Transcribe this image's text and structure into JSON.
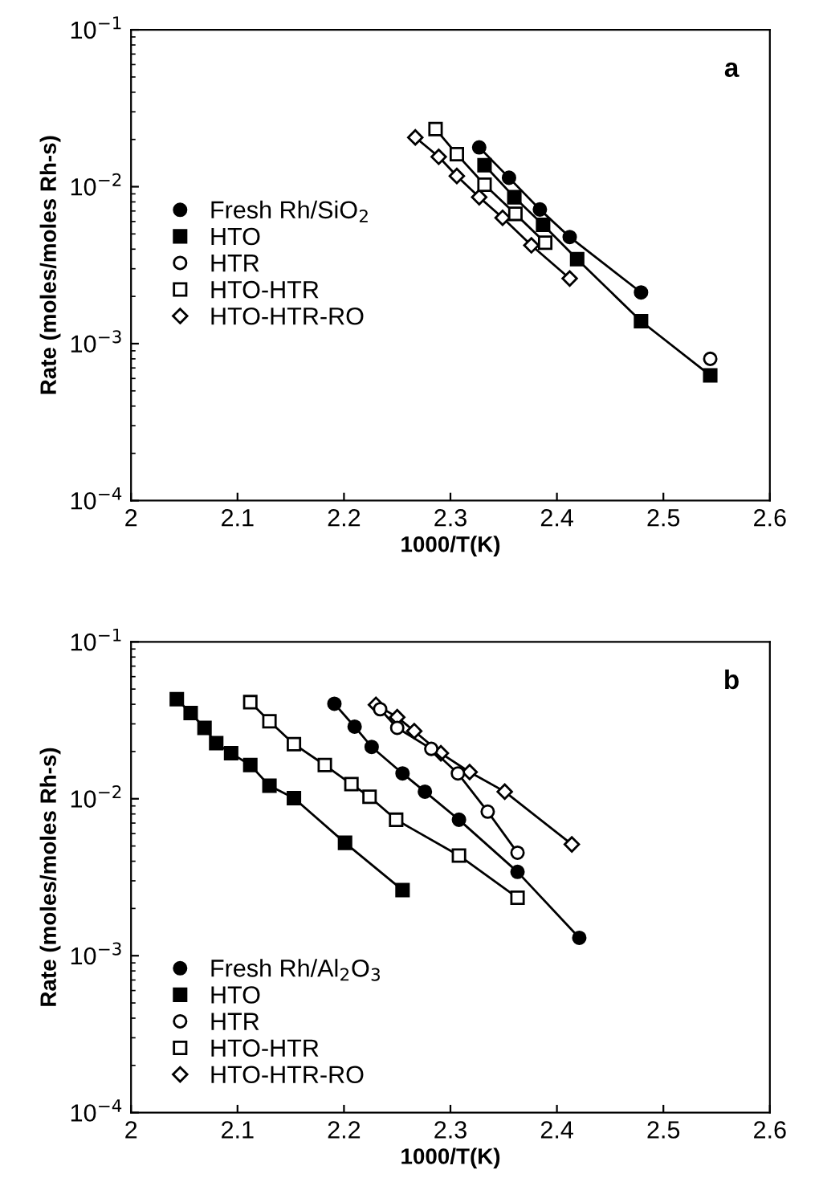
{
  "chart_data": [
    {
      "type": "line",
      "xlabel": "1000/T(K)",
      "ylabel": "Rate (moles/moles Rh-s)",
      "annotations": [
        "a"
      ],
      "log": "y",
      "legend": "left",
      "grid": false,
      "xlim": [
        2,
        2.6
      ],
      "xticks": [
        2,
        2.1,
        2.2,
        2.3,
        2.4,
        2.5,
        2.6
      ],
      "ylim": [
        0.0001,
        0.1
      ],
      "yticks": [
        {
          "value": 0.0001,
          "label": "10$^{−4}$"
        },
        {
          "value": 0.001,
          "label": "10$^{−3}$"
        },
        {
          "value": 0.01,
          "label": "10$^{−2}$"
        },
        {
          "value": 0.1,
          "label": "10$^{−1}$"
        }
      ],
      "series": [
        {
          "name": "Fresh Rh/SiO$_{2}$",
          "color": "#000000",
          "marker": "circle",
          "x": [
            2.327,
            2.355,
            2.384,
            2.412,
            2.479
          ],
          "values": [
            0.0178,
            0.0114,
            0.00716,
            0.00478,
            0.00212
          ]
        },
        {
          "name": "HTO",
          "color": "#000000",
          "marker": "square",
          "x": [
            2.332,
            2.36,
            2.387,
            2.419,
            2.479,
            2.544
          ],
          "values": [
            0.0137,
            0.00857,
            0.00571,
            0.00345,
            0.00139,
            0.000627
          ]
        },
        {
          "name": "HTR",
          "color": "#000000",
          "marker": "circle",
          "x": [
            2.544
          ],
          "values": [
            0.0008
          ]
        },
        {
          "name": "HTO-HTR",
          "color": "#000000",
          "marker": "square",
          "x": [
            2.286,
            2.306,
            2.332,
            2.361,
            2.389
          ],
          "values": [
            0.0233,
            0.0161,
            0.0103,
            0.00671,
            0.0044
          ]
        },
        {
          "name": "HTO-HTR-RO",
          "color": "#000000",
          "marker": "diamond",
          "x": [
            2.267,
            2.289,
            2.306,
            2.327,
            2.349,
            2.376,
            2.412
          ],
          "values": [
            0.0206,
            0.0155,
            0.0117,
            0.00857,
            0.00634,
            0.00423,
            0.0026
          ]
        }
      ]
    },
    {
      "type": "line",
      "xlabel": "1000/T(K)",
      "ylabel": "Rate (moles/moles Rh-s)",
      "annotations": [
        "b"
      ],
      "log": "y",
      "legend": "bottom left",
      "grid": false,
      "xlim": [
        2,
        2.6
      ],
      "xticks": [
        2,
        2.1,
        2.2,
        2.3,
        2.4,
        2.5,
        2.6
      ],
      "ylim": [
        0.0001,
        0.1
      ],
      "yticks": [
        {
          "value": 0.0001,
          "label": "10$^{−4}$"
        },
        {
          "value": 0.001,
          "label": "10$^{−3}$"
        },
        {
          "value": 0.01,
          "label": "10$^{−2}$"
        },
        {
          "value": 0.1,
          "label": "10$^{−1}$"
        }
      ],
      "series": [
        {
          "name": "Fresh Rh/Al$_{2}$O$_{3}$",
          "color": "#000000",
          "marker": "circle",
          "x": [
            2.191,
            2.21,
            2.226,
            2.255,
            2.276,
            2.308,
            2.363,
            2.421
          ],
          "values": [
            0.0403,
            0.0288,
            0.0214,
            0.0145,
            0.0111,
            0.00735,
            0.00342,
            0.0013
          ]
        },
        {
          "name": "HTO",
          "color": "#000000",
          "marker": "square",
          "x": [
            2.043,
            2.056,
            2.069,
            2.08,
            2.094,
            2.112,
            2.13,
            2.153,
            2.201,
            2.255
          ],
          "values": [
            0.0431,
            0.0352,
            0.0283,
            0.0226,
            0.0195,
            0.0164,
            0.0121,
            0.0101,
            0.00524,
            0.00262
          ]
        },
        {
          "name": "HTR",
          "color": "#000000",
          "marker": "circle",
          "x": [
            2.234,
            2.25,
            2.282,
            2.307,
            2.335,
            2.363
          ],
          "values": [
            0.0372,
            0.0283,
            0.0208,
            0.0145,
            0.00828,
            0.00453
          ]
        },
        {
          "name": "HTO-HTR",
          "color": "#000000",
          "marker": "square",
          "x": [
            2.112,
            2.13,
            2.153,
            2.182,
            2.207,
            2.224,
            2.249,
            2.308,
            2.363
          ],
          "values": [
            0.0413,
            0.0312,
            0.0223,
            0.0164,
            0.0124,
            0.0103,
            0.00735,
            0.00435,
            0.00234
          ]
        },
        {
          "name": "HTO-HTR-RO",
          "color": "#000000",
          "marker": "diamond",
          "x": [
            2.23,
            2.25,
            2.266,
            2.291,
            2.318,
            2.351,
            2.414
          ],
          "values": [
            0.0397,
            0.0331,
            0.027,
            0.0195,
            0.0148,
            0.0111,
            0.00512
          ]
        }
      ]
    }
  ]
}
